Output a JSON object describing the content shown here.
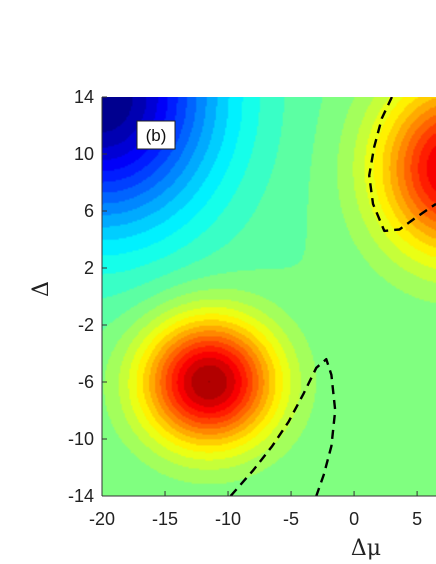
{
  "chart_data": {
    "type": "heatmap",
    "panel_label": "(b)",
    "xlabel": "Δμ",
    "ylabel": "Δ",
    "xlim": [
      -20,
      6.5
    ],
    "ylim": [
      -14,
      14
    ],
    "x_ticks": [
      -20,
      -15,
      -10,
      -5,
      0,
      5
    ],
    "x_tick_labels": [
      "-20",
      "-15",
      "-10",
      "-5",
      "0",
      "5"
    ],
    "y_ticks": [
      -14,
      -10,
      -6,
      -2,
      2,
      6,
      10,
      14
    ],
    "y_tick_labels": [
      "-14",
      "-10",
      "-6",
      "-2",
      "2",
      "6",
      "10",
      "14"
    ],
    "colormap": "jet",
    "dashed_contours": [
      {
        "name": "",
        "color": "#000000",
        "points": [
          [
            -9.8,
            -14
          ],
          [
            -8.0,
            -12.2
          ],
          [
            -6.5,
            -10.5
          ],
          [
            -5.2,
            -8.8
          ],
          [
            -4.0,
            -6.8
          ],
          [
            -3.0,
            -5.0
          ],
          [
            -2.2,
            -4.4
          ],
          [
            -1.8,
            -5.5
          ],
          [
            -1.5,
            -8.0
          ],
          [
            -1.8,
            -10.5
          ],
          [
            -2.4,
            -12.5
          ],
          [
            -3.0,
            -14
          ]
        ]
      },
      {
        "name": "",
        "color": "#000000",
        "points": [
          [
            3.0,
            14
          ],
          [
            2.2,
            12.5
          ],
          [
            1.6,
            10.5
          ],
          [
            1.2,
            8.5
          ],
          [
            1.5,
            6.5
          ],
          [
            2.4,
            4.6
          ],
          [
            3.6,
            4.7
          ],
          [
            5.0,
            5.6
          ],
          [
            6.5,
            6.5
          ]
        ]
      }
    ],
    "field_hotspots": [
      {
        "x": -11.5,
        "y": -6.0,
        "level": 1.0,
        "sx": 5.2,
        "sy": 4.4
      },
      {
        "x": 8.0,
        "y": 9.0,
        "level": 0.9,
        "sx": 6.0,
        "sy": 6.0
      },
      {
        "x": -20,
        "y": 14,
        "level": -1.0,
        "sx": 9.0,
        "sy": 9.0
      }
    ]
  }
}
